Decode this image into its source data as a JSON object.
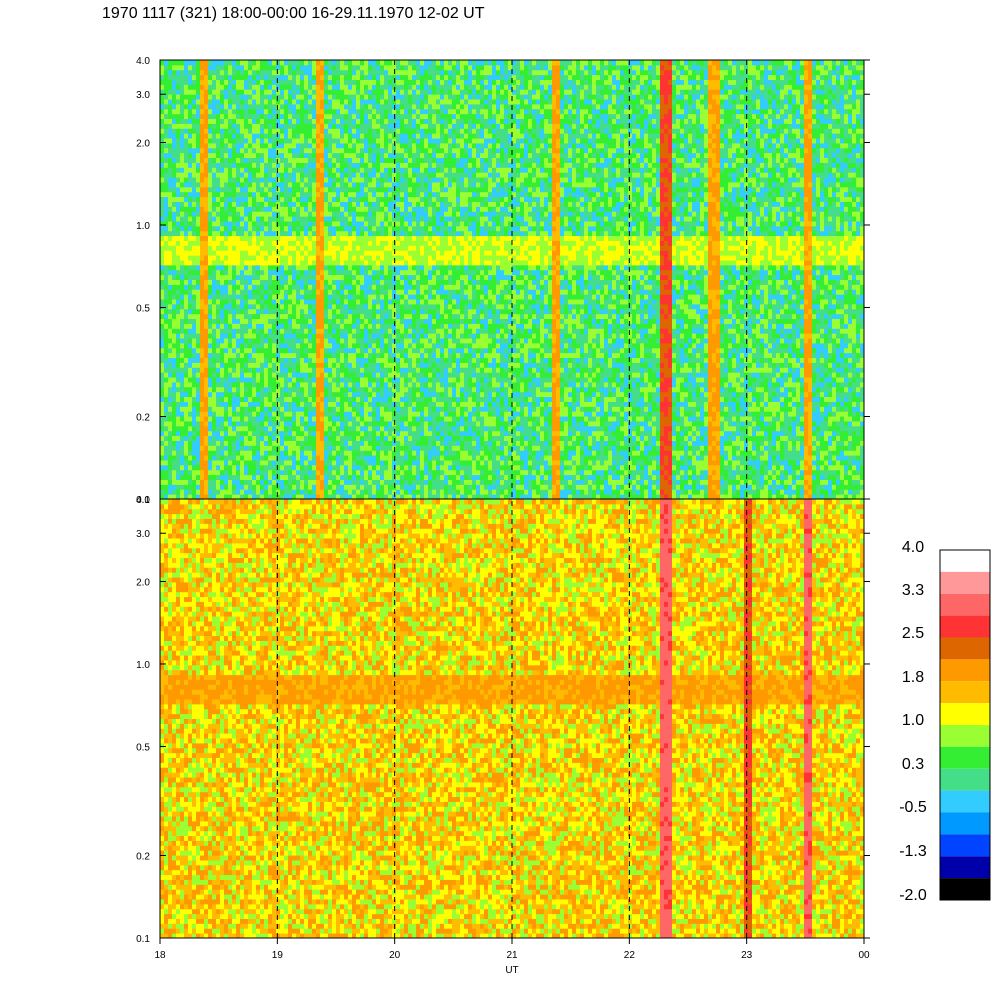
{
  "title": "1970 1117 (321) 18:00-00:00 16-29.11.1970  12-02 UT",
  "chart_data": {
    "type": "heatmap",
    "xlabel": "UT",
    "x_ticks": [
      "18",
      "19",
      "20",
      "21",
      "22",
      "23",
      "00"
    ],
    "x_range": [
      18,
      24
    ],
    "y_scale": "log",
    "y_range": [
      0.1,
      4.0
    ],
    "y_ticks": [
      "0.1",
      "0.2",
      "0.5",
      "1.0",
      "2.0",
      "3.0",
      "4.0"
    ],
    "y_tick_values": [
      0.1,
      0.2,
      0.5,
      1.0,
      2.0,
      3.0,
      4.0
    ],
    "panels": [
      {
        "dominant_level": 0.3,
        "band": {
          "frequency": 0.8,
          "level": 1.0
        },
        "events": [
          {
            "time": 18.35,
            "level": 1.8
          },
          {
            "time": 19.35,
            "level": 1.8
          },
          {
            "time": 21.35,
            "level": 1.8
          },
          {
            "time": 22.3,
            "level": 2.5
          },
          {
            "time": 22.7,
            "level": 1.8
          },
          {
            "time": 23.5,
            "level": 1.8
          }
        ]
      },
      {
        "dominant_level": 1.4,
        "band": {
          "frequency": 0.8,
          "level": 1.8
        },
        "events": [
          {
            "time": 22.3,
            "level": 3.0
          },
          {
            "time": 23.0,
            "level": 2.5
          },
          {
            "time": 23.5,
            "level": 3.0
          }
        ]
      }
    ],
    "colorbar": {
      "labels": [
        "4.0",
        "3.3",
        "2.5",
        "1.8",
        "1.0",
        "0.3",
        "-0.5",
        "-1.3",
        "-2.0"
      ],
      "colors": [
        "#ffffff",
        "#ff9999",
        "#ff6666",
        "#ff3333",
        "#dd6600",
        "#ff9900",
        "#ffbb00",
        "#ffff00",
        "#99ff33",
        "#33ee33",
        "#44dd88",
        "#33ccff",
        "#0099ff",
        "#0044ff",
        "#0000aa",
        "#000000"
      ]
    },
    "grid": "dashed vertical at each hour"
  }
}
